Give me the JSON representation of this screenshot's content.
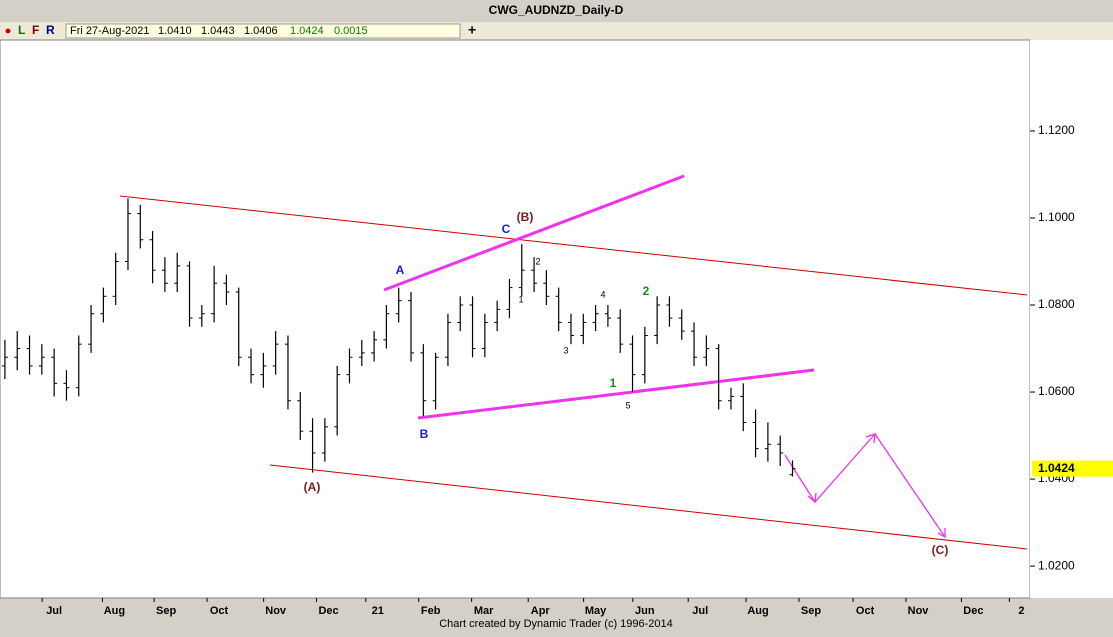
{
  "header": {
    "title": "CWG_AUDNZD_Daily-D",
    "buttons": [
      "L",
      "F",
      "R"
    ],
    "info": {
      "date": "Fri 27-Aug-2021",
      "open": "1.0410",
      "high": "1.0443",
      "low": "1.0406",
      "close": "1.0424",
      "change": "0.0015"
    },
    "add": "+"
  },
  "footer": "Chart created by Dynamic Trader  (c)  1996-2014",
  "chart_data": {
    "type": "ohlc",
    "color": "#000000",
    "open": [
      1.066,
      1.068,
      1.07,
      1.066,
      1.068,
      1.062,
      1.061,
      1.071,
      1.078,
      1.082,
      1.09,
      1.101,
      1.095,
      1.088,
      1.085,
      1.089,
      1.077,
      1.078,
      1.085,
      1.083,
      1.068,
      1.064,
      1.066,
      1.071,
      1.058,
      1.051,
      1.046,
      1.052,
      1.064,
      1.068,
      1.069,
      1.072,
      1.078,
      1.081,
      1.069,
      1.058,
      1.068,
      1.076,
      1.08,
      1.07,
      1.076,
      1.079,
      1.084,
      1.088,
      1.085,
      1.082,
      1.076,
      1.073,
      1.076,
      1.078,
      1.077,
      1.071,
      1.064,
      1.073,
      1.08,
      1.077,
      1.074,
      1.068,
      1.07,
      1.058,
      1.059,
      1.053,
      1.047,
      1.048,
      1.041
    ],
    "high": [
      1.072,
      1.074,
      1.073,
      1.071,
      1.07,
      1.065,
      1.073,
      1.08,
      1.084,
      1.092,
      1.1045,
      1.103,
      1.097,
      1.091,
      1.092,
      1.09,
      1.08,
      1.089,
      1.087,
      1.084,
      1.07,
      1.069,
      1.074,
      1.073,
      1.06,
      1.054,
      1.054,
      1.066,
      1.07,
      1.072,
      1.074,
      1.08,
      1.084,
      1.083,
      1.071,
      1.069,
      1.078,
      1.082,
      1.082,
      1.078,
      1.081,
      1.086,
      1.094,
      1.091,
      1.088,
      1.084,
      1.078,
      1.078,
      1.08,
      1.08,
      1.079,
      1.073,
      1.075,
      1.082,
      1.082,
      1.079,
      1.076,
      1.073,
      1.071,
      1.061,
      1.062,
      1.056,
      1.053,
      1.05,
      1.0443
    ],
    "low": [
      1.063,
      1.065,
      1.064,
      1.064,
      1.059,
      1.058,
      1.059,
      1.069,
      1.076,
      1.08,
      1.088,
      1.093,
      1.085,
      1.083,
      1.083,
      1.075,
      1.075,
      1.076,
      1.08,
      1.066,
      1.062,
      1.061,
      1.064,
      1.056,
      1.049,
      1.0415,
      1.044,
      1.05,
      1.062,
      1.066,
      1.067,
      1.07,
      1.076,
      1.067,
      1.0545,
      1.056,
      1.066,
      1.074,
      1.068,
      1.068,
      1.074,
      1.077,
      1.082,
      1.083,
      1.08,
      1.074,
      1.071,
      1.071,
      1.074,
      1.075,
      1.069,
      1.06,
      1.062,
      1.071,
      1.075,
      1.072,
      1.066,
      1.066,
      1.056,
      1.056,
      1.051,
      1.045,
      1.044,
      1.043,
      1.0406
    ],
    "close": [
      1.068,
      1.07,
      1.066,
      1.068,
      1.062,
      1.061,
      1.071,
      1.078,
      1.082,
      1.09,
      1.101,
      1.095,
      1.088,
      1.085,
      1.089,
      1.077,
      1.078,
      1.085,
      1.083,
      1.068,
      1.064,
      1.066,
      1.071,
      1.058,
      1.051,
      1.046,
      1.052,
      1.064,
      1.068,
      1.069,
      1.072,
      1.078,
      1.081,
      1.069,
      1.058,
      1.068,
      1.076,
      1.08,
      1.07,
      1.076,
      1.079,
      1.084,
      1.088,
      1.085,
      1.082,
      1.076,
      1.073,
      1.076,
      1.078,
      1.077,
      1.071,
      1.064,
      1.073,
      1.08,
      1.077,
      1.074,
      1.068,
      1.07,
      1.058,
      1.059,
      1.053,
      1.047,
      1.048,
      1.046,
      1.0424
    ],
    "xlim": [
      -0.4,
      83.3
    ],
    "xticks": [
      {
        "value": 4.0,
        "label": "Jul"
      },
      {
        "value": 8.9,
        "label": "Aug"
      },
      {
        "value": 13.1,
        "label": "Sep"
      },
      {
        "value": 17.4,
        "label": "Oct"
      },
      {
        "value": 22.0,
        "label": "Nov"
      },
      {
        "value": 26.3,
        "label": "Dec"
      },
      {
        "value": 30.3,
        "label": "21"
      },
      {
        "value": 34.6,
        "label": "Feb"
      },
      {
        "value": 38.9,
        "label": "Mar"
      },
      {
        "value": 43.5,
        "label": "Apr"
      },
      {
        "value": 48.0,
        "label": "May"
      },
      {
        "value": 52.0,
        "label": "Jun"
      },
      {
        "value": 56.5,
        "label": "Jul"
      },
      {
        "value": 61.2,
        "label": "Aug"
      },
      {
        "value": 65.5,
        "label": "Sep"
      },
      {
        "value": 69.9,
        "label": "Oct"
      },
      {
        "value": 74.2,
        "label": "Nov"
      },
      {
        "value": 78.7,
        "label": "Dec"
      },
      {
        "value": 82.6,
        "label": "2"
      }
    ],
    "ylim": [
      1.0129,
      1.1409
    ],
    "yticks": [
      {
        "value": 1.02,
        "label": "1.0200"
      },
      {
        "value": 1.04,
        "label": "1.0400"
      },
      {
        "value": 1.06,
        "label": "1.0600"
      },
      {
        "value": 1.08,
        "label": "1.0800"
      },
      {
        "value": 1.1,
        "label": "1.1000"
      },
      {
        "value": 1.12,
        "label": "1.1200"
      }
    ],
    "last_price": {
      "value": 1.0424,
      "label": "1.0424"
    },
    "annotations": [
      "(A)",
      "(B)",
      "(C)",
      "A",
      "B",
      "C",
      "1",
      "2",
      "3",
      "4",
      "5",
      "1",
      "2"
    ]
  }
}
